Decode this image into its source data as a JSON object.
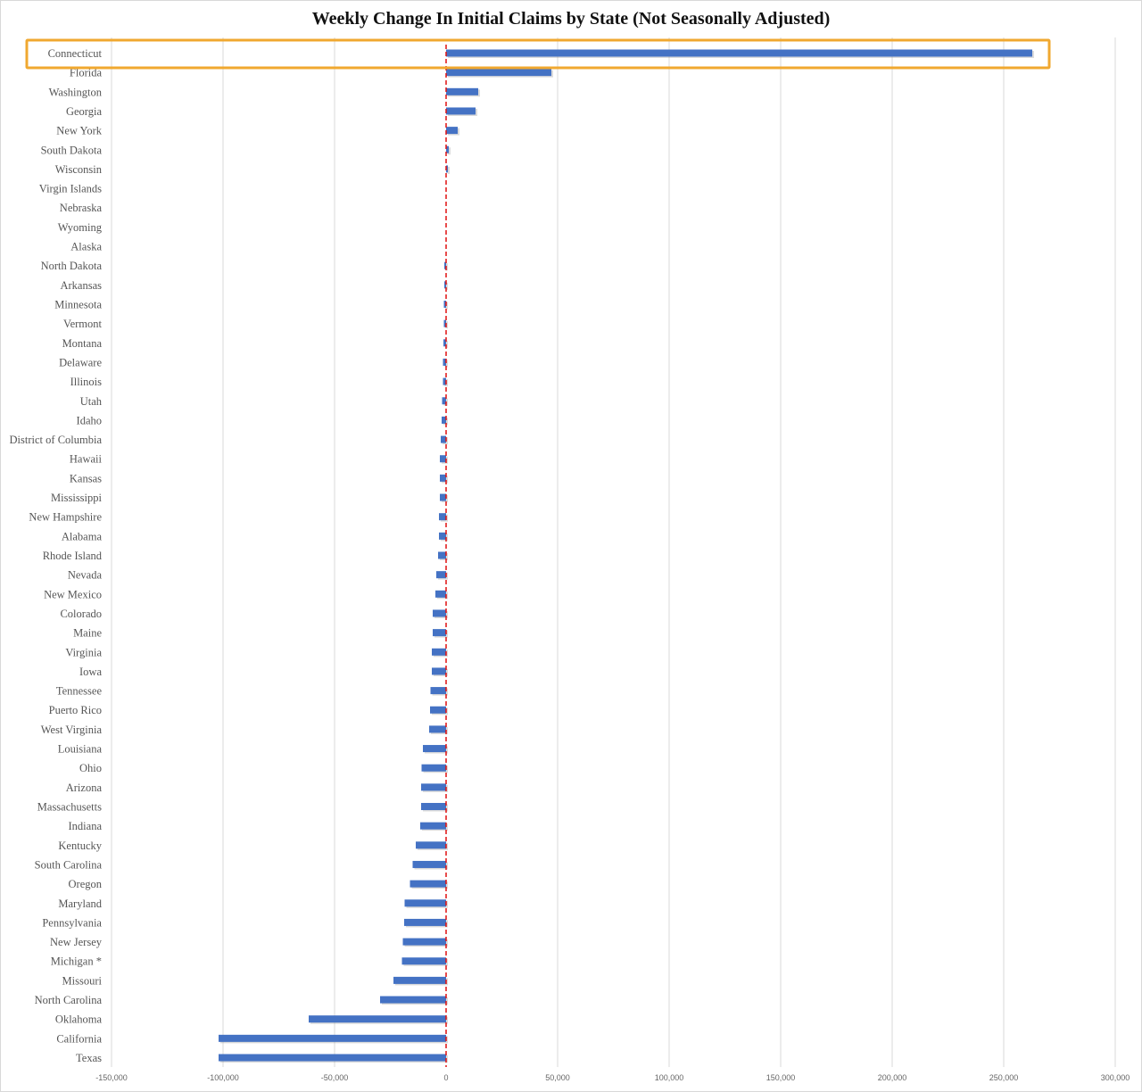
{
  "chart_data": {
    "type": "bar",
    "orientation": "horizontal",
    "title": "Weekly Change In Initial Claims by State (Not Seasonally Adjusted)",
    "xlabel": "",
    "ylabel": "",
    "xlim": [
      -150000,
      300000
    ],
    "xticks": [
      -150000,
      -100000,
      -50000,
      0,
      50000,
      100000,
      150000,
      200000,
      250000,
      300000
    ],
    "xtick_labels": [
      "-150,000",
      "-100,000",
      "-50,000",
      "0",
      "50,000",
      "100,000",
      "150,000",
      "200,000",
      "250,000",
      "300,000"
    ],
    "grid": true,
    "highlighted_category": "Connecticut",
    "colors": {
      "bar": "#4472c4",
      "zero_line": "#e01010",
      "highlight": "#f0a830",
      "grid": "#d9d9d9"
    },
    "categories": [
      "Connecticut",
      "Florida",
      "Washington",
      "Georgia",
      "New York",
      "South Dakota",
      "Wisconsin",
      "Virgin Islands",
      "Nebraska",
      "Wyoming",
      "Alaska",
      "North Dakota",
      "Arkansas",
      "Minnesota",
      "Vermont",
      "Montana",
      "Delaware",
      "Illinois",
      "Utah",
      "Idaho",
      "District of Columbia",
      "Hawaii",
      "Kansas",
      "Mississippi",
      "New Hampshire",
      "Alabama",
      "Rhode Island",
      "Nevada",
      "New Mexico",
      "Colorado",
      "Maine",
      "Virginia",
      "Iowa",
      "Tennessee",
      "Puerto Rico",
      "West Virginia",
      "Louisiana",
      "Ohio",
      "Arizona",
      "Massachusetts",
      "Indiana",
      "Kentucky",
      "South Carolina",
      "Oregon",
      "Maryland",
      "Pennsylvania",
      "New Jersey",
      "Michigan *",
      "Missouri",
      "North Carolina",
      "Oklahoma",
      "California",
      "Texas"
    ],
    "values": [
      262800,
      47200,
      14400,
      13200,
      5200,
      1200,
      800,
      100,
      50,
      0,
      -100,
      -800,
      -800,
      -1000,
      -1000,
      -1200,
      -1400,
      -1400,
      -1800,
      -2000,
      -2400,
      -2800,
      -2800,
      -2800,
      -3200,
      -3200,
      -3600,
      -4400,
      -4800,
      -6000,
      -6000,
      -6400,
      -6400,
      -7000,
      -7200,
      -7600,
      -10400,
      -11000,
      -11200,
      -11200,
      -11600,
      -13600,
      -15000,
      -16200,
      -18600,
      -18800,
      -19400,
      -19800,
      -23600,
      -29600,
      -61600,
      -102000,
      -102000
    ]
  }
}
